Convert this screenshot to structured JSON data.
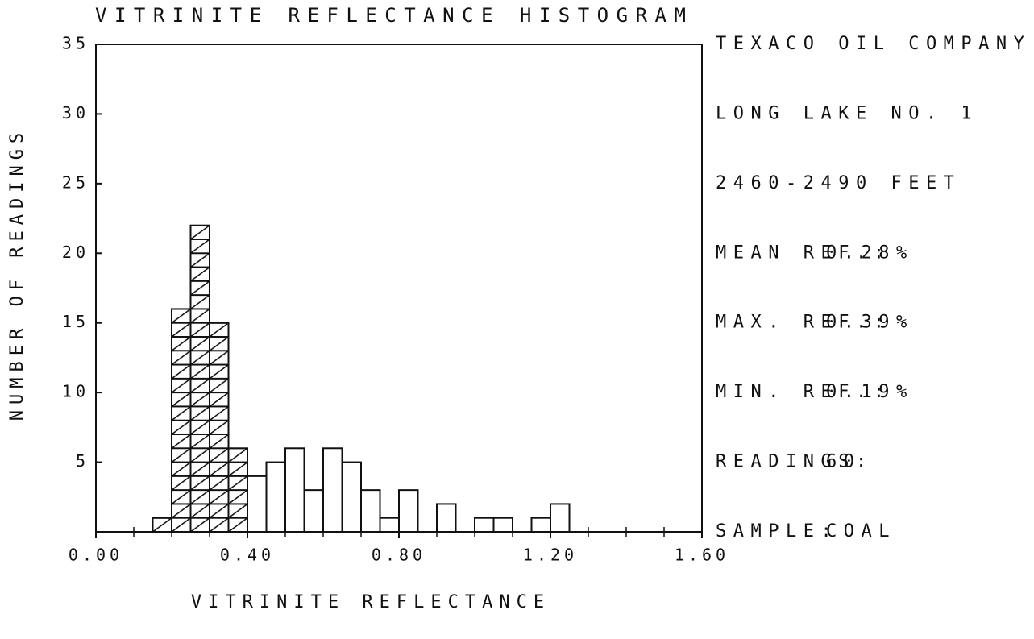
{
  "chart_data": {
    "type": "histogram",
    "title": "VITRINITE REFLECTANCE HISTOGRAM",
    "x_label": "VITRINITE REFLECTANCE",
    "y_label": "NUMBER OF READINGS",
    "bins": [
      0.0,
      0.05,
      0.1,
      0.15,
      0.2,
      0.25,
      0.3,
      0.35,
      0.4,
      0.45,
      0.5,
      0.55,
      0.6,
      0.65,
      0.7,
      0.75,
      0.8,
      0.85,
      0.9,
      0.95,
      1.0,
      1.05,
      1.1,
      1.15,
      1.2,
      1.25,
      1.3,
      1.35,
      1.4,
      1.45,
      1.5,
      1.55,
      1.6
    ],
    "series": [
      {
        "pattern": "hatch",
        "color": "#111111",
        "values": [
          0,
          0,
          0,
          1,
          16,
          22,
          15,
          6,
          0,
          0,
          0,
          0,
          0,
          0,
          0,
          0,
          0,
          0,
          0,
          0,
          0,
          0,
          0,
          0,
          0,
          0,
          0,
          0,
          0,
          0,
          0,
          0
        ]
      },
      {
        "pattern": "open",
        "color": "#111111",
        "values": [
          0,
          0,
          0,
          0,
          0,
          0,
          0,
          0,
          4,
          5,
          6,
          3,
          6,
          5,
          3,
          1,
          3,
          0,
          2,
          0,
          1,
          1,
          0,
          1,
          2,
          0,
          0,
          0,
          0,
          0,
          0,
          0
        ]
      }
    ],
    "xlim": [
      0,
      1.6
    ],
    "xticks": [
      {
        "value": 0,
        "label": "0.00"
      },
      {
        "value": 0.4,
        "label": "0.40"
      },
      {
        "value": 0.8,
        "label": "0.80"
      },
      {
        "value": 1.2,
        "label": "1.20"
      },
      {
        "value": 1.6,
        "label": "1.60"
      }
    ],
    "xminorticks": [
      0.1,
      0.2,
      0.3,
      0.5,
      0.6,
      0.7,
      0.9,
      1.0,
      1.1,
      1.3,
      1.4,
      1.5
    ],
    "ylim": [
      0,
      35
    ],
    "yticks": [
      5,
      10,
      15,
      20,
      25,
      30,
      35
    ],
    "notes": [
      "TEXACO OIL COMPANY",
      "LONG LAKE NO. 1",
      "2460-2490 FEET"
    ],
    "stats": [
      {
        "label": "MEAN REF.:",
        "value": "0.28%"
      },
      {
        "label": "MAX. REF.:",
        "value": "0.39%"
      },
      {
        "label": "MIN. REF.:",
        "value": "0.19%"
      },
      {
        "label": "READINGS:",
        "value": "60"
      },
      {
        "label": "SAMPLE:",
        "value": "COAL"
      }
    ]
  }
}
